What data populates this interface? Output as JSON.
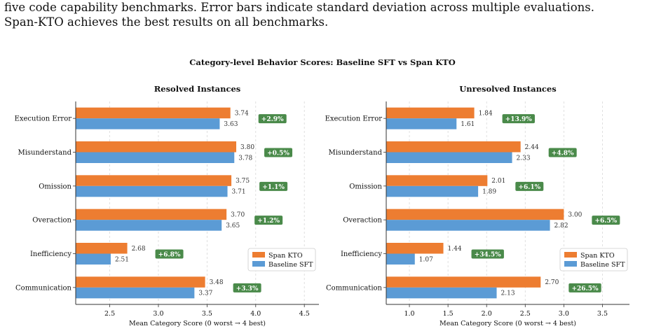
{
  "caption": {
    "line1": "five code capability benchmarks.  Error bars indicate standard deviation across multiple evaluations.",
    "line2": "Span-KTO achieves the best results on all benchmarks."
  },
  "figure_title": "Category-level Behavior Scores: Baseline SFT vs Span KTO",
  "colors": {
    "span_kto": "#ED7D31",
    "baseline_sft": "#5B9BD5",
    "badge": "#4A8A4A",
    "grid": "#d8d8d8"
  },
  "chart_data": [
    {
      "type": "bar",
      "orientation": "horizontal",
      "title": "Resolved Instances",
      "xlabel": "Mean Category Score (0 worst → 4 best)",
      "ylabel": "",
      "categories": [
        "Execution Error",
        "Misunderstand",
        "Omission",
        "Overaction",
        "Inefficiency",
        "Communication"
      ],
      "series": [
        {
          "name": "Span KTO",
          "values": [
            3.74,
            3.8,
            3.75,
            3.7,
            2.68,
            3.48
          ],
          "labels": [
            "3.74",
            "3.80",
            "3.75",
            "3.70",
            "2.68",
            "3.48"
          ]
        },
        {
          "name": "Baseline SFT",
          "values": [
            3.63,
            3.78,
            3.71,
            3.65,
            2.51,
            3.37
          ],
          "labels": [
            "3.63",
            "3.78",
            "3.71",
            "3.65",
            "2.51",
            "3.37"
          ]
        }
      ],
      "improvements": [
        "+2.9%",
        "+0.5%",
        "+1.1%",
        "+1.2%",
        "+6.8%",
        "+3.3%"
      ],
      "xlim": [
        2.15,
        4.65
      ],
      "xticks": [
        2.5,
        3.0,
        3.5,
        4.0,
        4.5
      ],
      "xtick_labels": [
        "2.5",
        "3.0",
        "3.5",
        "4.0",
        "4.5"
      ],
      "grid": "vertical dashed",
      "legend_position": "lower-right"
    },
    {
      "type": "bar",
      "orientation": "horizontal",
      "title": "Unresolved Instances",
      "xlabel": "Mean Category Score (0 worst → 4 best)",
      "ylabel": "",
      "categories": [
        "Execution Error",
        "Misunderstand",
        "Omission",
        "Overaction",
        "Inefficiency",
        "Communication"
      ],
      "series": [
        {
          "name": "Span KTO",
          "values": [
            1.84,
            2.44,
            2.01,
            3.0,
            1.44,
            2.7
          ],
          "labels": [
            "1.84",
            "2.44",
            "2.01",
            "3.00",
            "1.44",
            "2.70"
          ]
        },
        {
          "name": "Baseline SFT",
          "values": [
            1.61,
            2.33,
            1.89,
            2.82,
            1.07,
            2.13
          ],
          "labels": [
            "1.61",
            "2.33",
            "1.89",
            "2.82",
            "1.07",
            "2.13"
          ]
        }
      ],
      "improvements": [
        "+13.9%",
        "+4.8%",
        "+6.1%",
        "+6.5%",
        "+34.5%",
        "+26.5%"
      ],
      "xlim": [
        0.7,
        3.85
      ],
      "xticks": [
        1.0,
        1.5,
        2.0,
        2.5,
        3.0,
        3.5
      ],
      "xtick_labels": [
        "1.0",
        "1.5",
        "2.0",
        "2.5",
        "3.0",
        "3.5"
      ],
      "grid": "vertical dashed",
      "legend_position": "lower-right"
    }
  ]
}
